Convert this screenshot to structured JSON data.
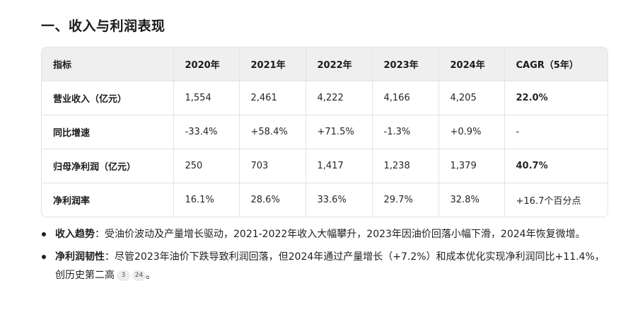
{
  "heading": "一、收入与利润表现",
  "table": {
    "headers": [
      "指标",
      "2020年",
      "2021年",
      "2022年",
      "2023年",
      "2024年",
      "CAGR（5年）"
    ],
    "rows": [
      {
        "label": "营业收入（亿元）",
        "cells": [
          "1,554",
          "2,461",
          "4,222",
          "4,166",
          "4,205"
        ],
        "cagr": "22.0%"
      },
      {
        "label": "同比增速",
        "cells": [
          "-33.4%",
          "+58.4%",
          "+71.5%",
          "-1.3%",
          "+0.9%"
        ],
        "cagr": "-"
      },
      {
        "label": "归母净利润（亿元）",
        "cells": [
          "250",
          "703",
          "1,417",
          "1,238",
          "1,379"
        ],
        "cagr": "40.7%"
      },
      {
        "label": "净利润率",
        "cells": [
          "16.1%",
          "28.6%",
          "33.6%",
          "29.7%",
          "32.8%"
        ],
        "cagr": "+16.7个百分点"
      }
    ]
  },
  "bullets": [
    {
      "term": "收入趋势",
      "text": "：受油价波动及产量增长驱动，2021-2022年收入大幅攀升，2023年因油价回落小幅下滑，2024年恢复微增。",
      "cites": [],
      "end": ""
    },
    {
      "term": "净利润韧性",
      "text": "：尽管2023年油价下跌导致利润回落，但2024年通过产量增长（+7.2%）和成本优化实现净利润同比+11.4%，创历史第二高",
      "cites": [
        "3",
        "24"
      ],
      "end": "。"
    }
  ]
}
